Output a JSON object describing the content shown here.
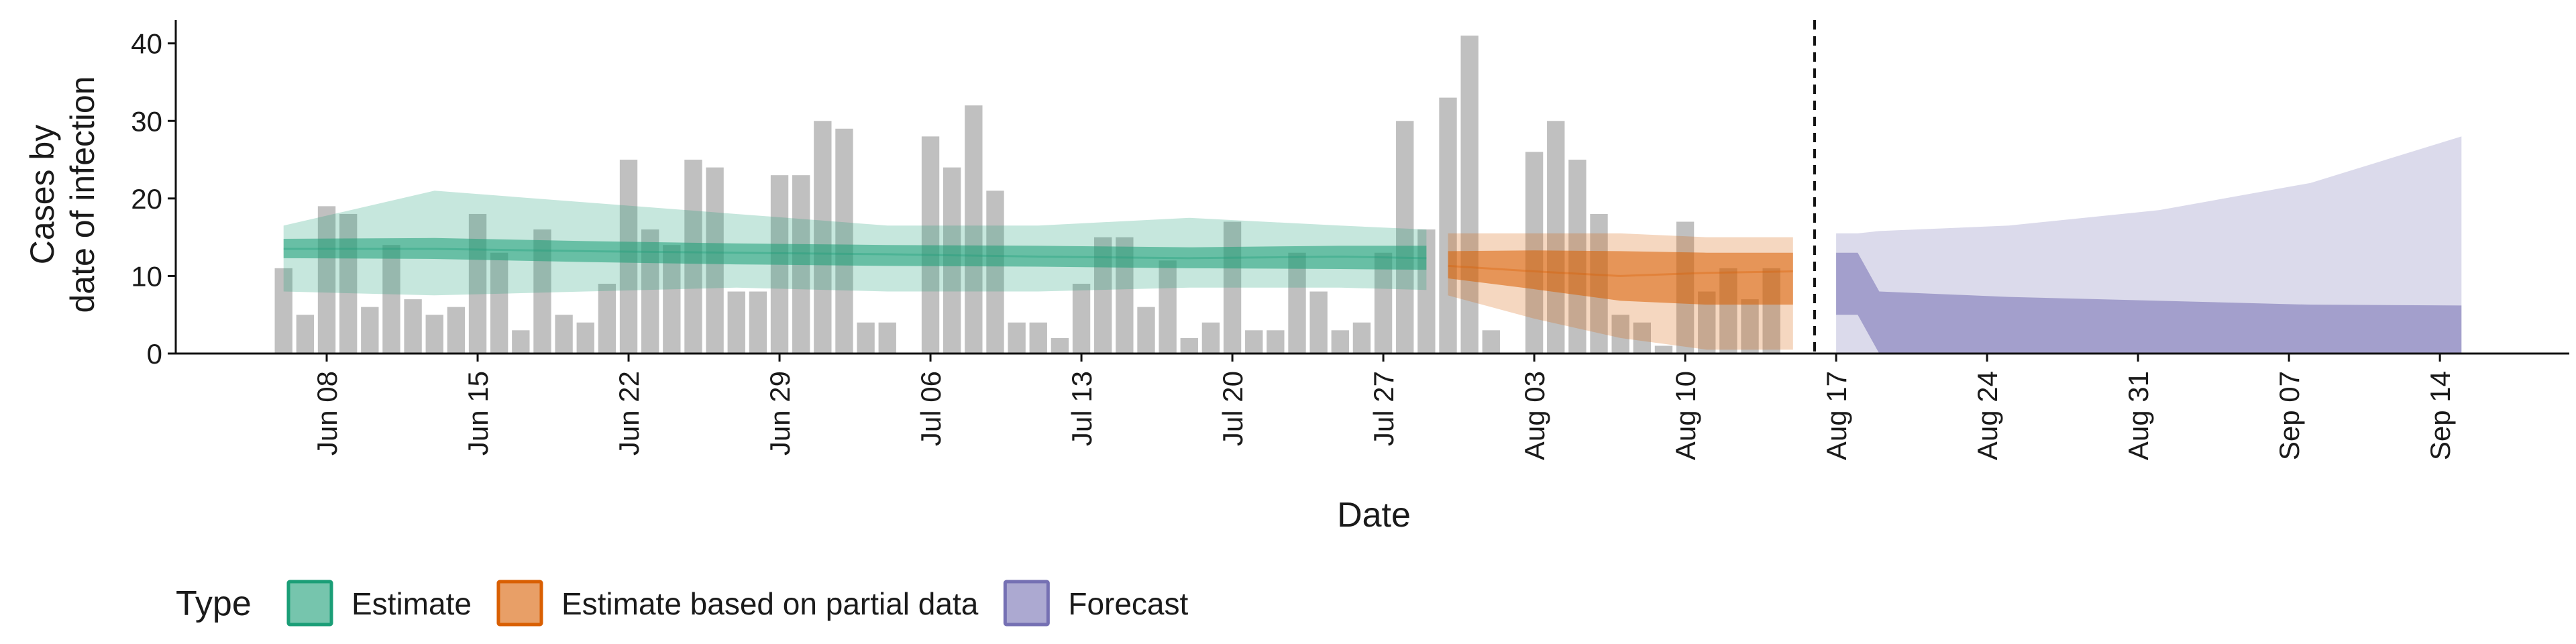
{
  "chart_data": {
    "type": "bar",
    "xlabel": "Date",
    "ylabel_lines": [
      "Cases by",
      "date of infection"
    ],
    "ylim": [
      0,
      43
    ],
    "yticks": [
      0,
      10,
      20,
      30,
      40
    ],
    "x_range": [
      "2020-06-01",
      "2020-09-20"
    ],
    "xticks": [
      "2020-06-08",
      "2020-06-15",
      "2020-06-22",
      "2020-06-29",
      "2020-07-06",
      "2020-07-13",
      "2020-07-20",
      "2020-07-27",
      "2020-08-03",
      "2020-08-10",
      "2020-08-17",
      "2020-08-24",
      "2020-08-31",
      "2020-09-07",
      "2020-09-14"
    ],
    "xtick_labels": [
      "Jun 08",
      "Jun 15",
      "Jun 22",
      "Jun 29",
      "Jul 06",
      "Jul 13",
      "Jul 20",
      "Jul 27",
      "Aug 03",
      "Aug 10",
      "Aug 17",
      "Aug 24",
      "Aug 31",
      "Sep 07",
      "Sep 14"
    ],
    "vline_date": "2020-08-16",
    "bars": {
      "start_date": "2020-06-06",
      "values": [
        11,
        5,
        19,
        18,
        6,
        14,
        7,
        5,
        6,
        18,
        13,
        3,
        16,
        5,
        4,
        9,
        25,
        16,
        14,
        25,
        24,
        8,
        8,
        23,
        23,
        30,
        29,
        4,
        4,
        0,
        28,
        24,
        32,
        21,
        4,
        4,
        2,
        9,
        15,
        15,
        6,
        12,
        2,
        4,
        17,
        3,
        3,
        13,
        8,
        3,
        4,
        13,
        30,
        16,
        33,
        41,
        3,
        0,
        26,
        30,
        25,
        18,
        5,
        4,
        1,
        17,
        8,
        11,
        7,
        11
      ]
    },
    "series": [
      {
        "name": "Estimate",
        "dates": [
          "2020-06-06",
          "2020-06-13",
          "2020-06-20",
          "2020-06-27",
          "2020-07-04",
          "2020-07-11",
          "2020-07-18",
          "2020-07-25",
          "2020-07-29"
        ],
        "median": [
          13.5,
          13.5,
          13.2,
          13.0,
          12.8,
          12.5,
          12.3,
          12.5,
          12.3
        ],
        "inner": [
          [
            12.3,
            14.8
          ],
          [
            12.2,
            14.9
          ],
          [
            11.8,
            14.5
          ],
          [
            11.5,
            14.2
          ],
          [
            11.3,
            14.0
          ],
          [
            11.2,
            13.9
          ],
          [
            11.0,
            13.7
          ],
          [
            10.9,
            13.9
          ],
          [
            10.8,
            13.9
          ]
        ],
        "outer": [
          [
            8.0,
            16.5
          ],
          [
            7.5,
            21.0
          ],
          [
            8.0,
            19.5
          ],
          [
            8.5,
            18.0
          ],
          [
            8.0,
            16.5
          ],
          [
            8.0,
            16.5
          ],
          [
            8.5,
            17.5
          ],
          [
            8.5,
            16.5
          ],
          [
            8.2,
            16.0
          ]
        ]
      },
      {
        "name": "Estimate based on partial data",
        "dates": [
          "2020-07-30",
          "2020-08-03",
          "2020-08-07",
          "2020-08-11",
          "2020-08-15"
        ],
        "median": [
          11.3,
          10.6,
          10.0,
          10.4,
          10.6
        ],
        "inner": [
          [
            9.7,
            13.2
          ],
          [
            8.3,
            13.3
          ],
          [
            6.8,
            13.2
          ],
          [
            6.3,
            13.0
          ],
          [
            6.3,
            13.0
          ]
        ],
        "outer": [
          [
            7.5,
            15.5
          ],
          [
            4.5,
            15.5
          ],
          [
            2.0,
            15.5
          ],
          [
            0.5,
            15.0
          ],
          [
            0.5,
            15.0
          ]
        ]
      },
      {
        "name": "Forecast",
        "dates": [
          "2020-08-17",
          "2020-08-18",
          "2020-08-19",
          "2020-08-25",
          "2020-09-01",
          "2020-09-08",
          "2020-09-15"
        ],
        "inner": [
          [
            5.0,
            13.0
          ],
          [
            5.0,
            13.0
          ],
          [
            0,
            8.0
          ],
          [
            0,
            7.3
          ],
          [
            0,
            6.8
          ],
          [
            0,
            6.3
          ],
          [
            0,
            6.2
          ]
        ],
        "outer": [
          [
            0,
            15.5
          ],
          [
            0,
            15.5
          ],
          [
            0,
            15.8
          ],
          [
            0,
            16.5
          ],
          [
            0,
            18.5
          ],
          [
            0,
            22.0
          ],
          [
            0,
            28.0
          ]
        ]
      }
    ],
    "legend": {
      "title": "Type",
      "position": "bottom",
      "entries": [
        {
          "label": "Estimate",
          "fill": "#1b9e77",
          "border": "#1b9e77"
        },
        {
          "label": "Estimate based on partial data",
          "fill": "#d95f02",
          "border": "#d95f02"
        },
        {
          "label": "Forecast",
          "fill": "#7570b3",
          "border": "#7570b3"
        }
      ]
    },
    "colors": {
      "bars": "#bdbdbd",
      "estimate": "#1b9e77",
      "partial": "#d95f02",
      "forecast": "#7570b3"
    }
  }
}
